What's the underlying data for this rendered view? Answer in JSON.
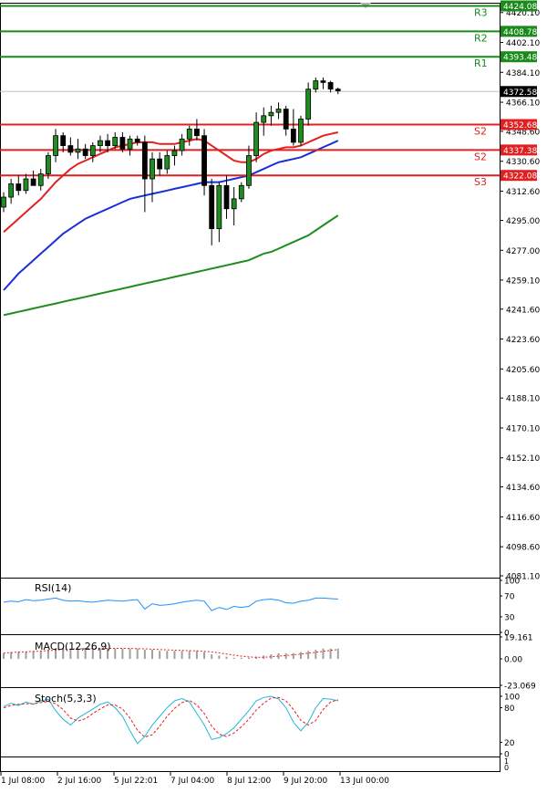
{
  "chart_data": {
    "type": "candlestick",
    "main": {
      "y_ticks": [
        "4420.10",
        "4402.10",
        "4384.10",
        "4366.10",
        "4348.60",
        "4330.60",
        "4312.60",
        "4295.00",
        "4277.00",
        "4259.10",
        "4241.60",
        "4223.60",
        "4205.60",
        "4188.10",
        "4170.10",
        "4152.10",
        "4134.60",
        "4116.60",
        "4098.60",
        "4081.10"
      ],
      "ylim": [
        4081.1,
        4426.0
      ],
      "current_price": "4372.58",
      "levels": [
        {
          "name": "R3",
          "value": 4424.08,
          "label": "4424.08",
          "color": "#1a8a1a"
        },
        {
          "name": "R2",
          "value": 4408.78,
          "label": "4408.78",
          "color": "#1a8a1a"
        },
        {
          "name": "R1",
          "value": 4393.48,
          "label": "4393.48",
          "color": "#1a8a1a"
        },
        {
          "name": "S2",
          "value": 4352.68,
          "label": "4352.68",
          "color": "#e02020"
        },
        {
          "name": "S2",
          "value": 4337.38,
          "label": "4337.38",
          "color": "#e02020"
        },
        {
          "name": "S3",
          "value": 4322.08,
          "label": "4322.08",
          "color": "#e02020"
        }
      ],
      "candles": [
        [
          4303,
          4312,
          4300,
          4309
        ],
        [
          4309,
          4320,
          4305,
          4317
        ],
        [
          4317,
          4322,
          4310,
          4313
        ],
        [
          4313,
          4323,
          4311,
          4320
        ],
        [
          4320,
          4325,
          4316,
          4316
        ],
        [
          4316,
          4326,
          4313,
          4323
        ],
        [
          4323,
          4336,
          4320,
          4334
        ],
        [
          4334,
          4350,
          4330,
          4346
        ],
        [
          4346,
          4348,
          4336,
          4340
        ],
        [
          4340,
          4345,
          4334,
          4336
        ],
        [
          4336,
          4344,
          4332,
          4338
        ],
        [
          4338,
          4341,
          4332,
          4334
        ],
        [
          4334,
          4342,
          4330,
          4340
        ],
        [
          4340,
          4346,
          4336,
          4343
        ],
        [
          4343,
          4347,
          4336,
          4340
        ],
        [
          4340,
          4348,
          4338,
          4345
        ],
        [
          4345,
          4348,
          4336,
          4338
        ],
        [
          4338,
          4346,
          4334,
          4344
        ],
        [
          4344,
          4346,
          4340,
          4342
        ],
        [
          4342,
          4346,
          4300,
          4320
        ],
        [
          4320,
          4336,
          4306,
          4332
        ],
        [
          4332,
          4336,
          4322,
          4326
        ],
        [
          4326,
          4337,
          4323,
          4334
        ],
        [
          4334,
          4340,
          4328,
          4337
        ],
        [
          4337,
          4347,
          4334,
          4344
        ],
        [
          4344,
          4352,
          4340,
          4350
        ],
        [
          4350,
          4356,
          4343,
          4346
        ],
        [
          4346,
          4350,
          4310,
          4316
        ],
        [
          4316,
          4320,
          4280,
          4290
        ],
        [
          4290,
          4318,
          4282,
          4316
        ],
        [
          4316,
          4322,
          4296,
          4302
        ],
        [
          4302,
          4315,
          4292,
          4308
        ],
        [
          4308,
          4318,
          4306,
          4316
        ],
        [
          4316,
          4340,
          4314,
          4334
        ],
        [
          4334,
          4360,
          4330,
          4354
        ],
        [
          4354,
          4363,
          4346,
          4358
        ],
        [
          4358,
          4364,
          4352,
          4360
        ],
        [
          4360,
          4366,
          4356,
          4362
        ],
        [
          4362,
          4364,
          4346,
          4350
        ],
        [
          4350,
          4362,
          4340,
          4342
        ],
        [
          4342,
          4358,
          4340,
          4356
        ],
        [
          4356,
          4378,
          4352,
          4374
        ],
        [
          4374,
          4381,
          4372,
          4379
        ],
        [
          4379,
          4381,
          4374,
          4378
        ],
        [
          4378,
          4379,
          4372,
          4374
        ],
        [
          4374,
          4375,
          4371,
          4373
        ]
      ],
      "ma_red": [
        4288,
        4292,
        4296,
        4300,
        4304,
        4308,
        4313,
        4318,
        4322,
        4326,
        4329,
        4331,
        4333,
        4335,
        4337,
        4339,
        4340,
        4341,
        4342,
        4342,
        4342,
        4341,
        4341,
        4341,
        4342,
        4343,
        4344,
        4343,
        4340,
        4337,
        4334,
        4331,
        4330,
        4330,
        4332,
        4335,
        4337,
        4338,
        4339,
        4339,
        4340,
        4342,
        4344,
        4346,
        4347,
        4348
      ],
      "ma_blue": [
        4253,
        4258,
        4263,
        4267,
        4271,
        4275,
        4279,
        4283,
        4287,
        4290,
        4293,
        4296,
        4298,
        4300,
        4302,
        4304,
        4306,
        4308,
        4309,
        4310,
        4311,
        4312,
        4313,
        4314,
        4315,
        4316,
        4317,
        4318,
        4318,
        4318,
        4319,
        4320,
        4321,
        4322,
        4324,
        4326,
        4328,
        4330,
        4331,
        4332,
        4333,
        4335,
        4337,
        4339,
        4341,
        4343
      ],
      "ma_green": [
        4238,
        4239,
        4240,
        4241,
        4242,
        4243,
        4244,
        4245,
        4246,
        4247,
        4248,
        4249,
        4250,
        4251,
        4252,
        4253,
        4254,
        4255,
        4256,
        4257,
        4258,
        4259,
        4260,
        4261,
        4262,
        4263,
        4264,
        4265,
        4266,
        4267,
        4268,
        4269,
        4270,
        4271,
        4273,
        4275,
        4276,
        4278,
        4280,
        4282,
        4284,
        4286,
        4289,
        4292,
        4295,
        4298
      ]
    },
    "rsi": {
      "label": "RSI(14)",
      "y_ticks": [
        "100",
        "70",
        "30",
        "0"
      ],
      "ylim": [
        0,
        100
      ],
      "values": [
        58,
        60,
        59,
        63,
        61,
        62,
        64,
        66,
        62,
        60,
        61,
        59,
        58,
        60,
        62,
        61,
        60,
        62,
        63,
        45,
        55,
        52,
        53,
        55,
        58,
        60,
        62,
        60,
        42,
        48,
        44,
        50,
        48,
        50,
        60,
        63,
        64,
        62,
        57,
        56,
        60,
        62,
        66,
        66,
        65,
        64
      ]
    },
    "macd": {
      "label": "MACD(12,26,9)",
      "y_ticks": [
        "19.161",
        "0.00",
        "-23.069"
      ],
      "ylim": [
        -23.069,
        19.161
      ],
      "histogram": [
        5,
        6,
        6,
        6,
        7,
        7,
        8,
        9,
        9,
        9,
        9,
        9,
        9,
        9,
        9,
        9,
        9,
        9,
        9,
        8,
        8,
        7,
        7,
        7,
        7,
        7,
        7,
        6,
        4,
        3,
        2,
        1,
        1,
        1,
        2,
        3,
        4,
        5,
        5,
        5,
        6,
        7,
        8,
        9,
        9,
        9
      ],
      "signal": [
        5,
        5.5,
        6,
        6.2,
        6.5,
        6.8,
        7.2,
        7.8,
        8.2,
        8.5,
        8.8,
        9,
        9.1,
        9.2,
        9.2,
        9.2,
        9.2,
        9.1,
        9,
        8.8,
        8.5,
        8.2,
        7.9,
        7.6,
        7.4,
        7.2,
        7,
        6.6,
        6,
        5.2,
        4.3,
        3.3,
        2.4,
        1.7,
        1.4,
        1.4,
        1.8,
        2.4,
        3,
        3.6,
        4.3,
        5,
        5.8,
        6.6,
        7.4,
        8.2
      ]
    },
    "stoch": {
      "label": "Stoch(5,3,3)",
      "y_ticks": [
        "100",
        "80",
        "20",
        "0"
      ],
      "ylim": [
        0,
        100
      ],
      "k": [
        82,
        88,
        84,
        90,
        86,
        92,
        95,
        75,
        60,
        50,
        62,
        70,
        78,
        86,
        90,
        80,
        65,
        40,
        18,
        30,
        50,
        65,
        80,
        92,
        96,
        90,
        70,
        50,
        25,
        28,
        35,
        45,
        60,
        75,
        92,
        98,
        100,
        95,
        80,
        55,
        40,
        55,
        80,
        96,
        95,
        92
      ],
      "d": [
        80,
        84,
        86,
        87,
        87,
        89,
        91,
        87,
        77,
        62,
        57,
        61,
        70,
        78,
        85,
        85,
        78,
        62,
        41,
        29,
        33,
        48,
        65,
        79,
        89,
        93,
        85,
        70,
        48,
        34,
        30,
        36,
        47,
        60,
        76,
        88,
        97,
        98,
        92,
        77,
        58,
        50,
        58,
        77,
        90,
        94
      ]
    },
    "x_labels": [
      "1 Jul 08:00",
      "2 Jul 16:00",
      "5 Jul 22:01",
      "7 Jul 04:00",
      "8 Jul 12:00",
      "9 Jul 20:00",
      "13 Jul 00:00"
    ]
  }
}
